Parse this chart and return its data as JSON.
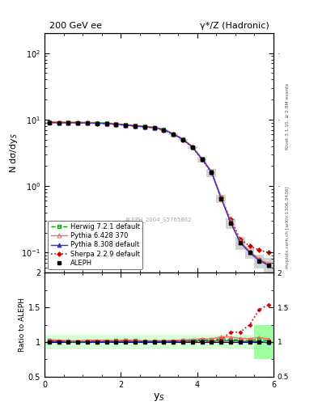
{
  "title_left": "200 GeV ee",
  "title_right": "γ*/Z (Hadronic)",
  "ylabel_main": "N dσ/dy$_S$",
  "ylabel_ratio": "Ratio to ALEPH",
  "xlabel": "y$_S$",
  "right_label_top": "Rivet 3.1.10, ≥ 2.8M events",
  "right_label_bottom": "mcplots.cern.ch [arXiv:1306.3436]",
  "watermark": "ALEPH_2004_S5765862",
  "xlim": [
    0,
    6
  ],
  "ylim_main": [
    0.05,
    200
  ],
  "ylim_ratio": [
    0.5,
    2.0
  ],
  "x_data": [
    0.125,
    0.375,
    0.625,
    0.875,
    1.125,
    1.375,
    1.625,
    1.875,
    2.125,
    2.375,
    2.625,
    2.875,
    3.125,
    3.375,
    3.625,
    3.875,
    4.125,
    4.375,
    4.625,
    4.875,
    5.125,
    5.375,
    5.625,
    5.875
  ],
  "aleph_y": [
    9.0,
    8.9,
    9.0,
    9.0,
    8.85,
    8.8,
    8.7,
    8.5,
    8.2,
    8.0,
    7.8,
    7.5,
    7.0,
    6.0,
    5.0,
    3.8,
    2.5,
    1.6,
    0.65,
    0.28,
    0.14,
    0.1,
    0.075,
    0.065
  ],
  "aleph_yerr": [
    0.3,
    0.25,
    0.25,
    0.25,
    0.22,
    0.22,
    0.22,
    0.22,
    0.2,
    0.2,
    0.2,
    0.2,
    0.18,
    0.15,
    0.15,
    0.2,
    0.25,
    0.22,
    0.09,
    0.05,
    0.03,
    0.02,
    0.018,
    0.018
  ],
  "herwig_y": [
    9.2,
    9.05,
    9.1,
    9.05,
    9.0,
    8.95,
    8.85,
    8.65,
    8.4,
    8.15,
    7.9,
    7.6,
    7.1,
    6.1,
    5.1,
    3.9,
    2.6,
    1.65,
    0.68,
    0.29,
    0.145,
    0.102,
    0.078,
    0.066
  ],
  "pythia6_y": [
    9.3,
    9.15,
    9.2,
    9.15,
    9.1,
    9.05,
    8.9,
    8.7,
    8.45,
    8.2,
    7.95,
    7.65,
    7.15,
    6.15,
    5.15,
    3.95,
    2.62,
    1.67,
    0.7,
    0.3,
    0.148,
    0.105,
    0.08,
    0.068
  ],
  "pythia8_y": [
    9.1,
    8.95,
    9.0,
    8.95,
    8.9,
    8.85,
    8.75,
    8.55,
    8.3,
    8.05,
    7.85,
    7.55,
    7.05,
    6.05,
    5.05,
    3.85,
    2.55,
    1.62,
    0.66,
    0.285,
    0.142,
    0.1,
    0.076,
    0.064
  ],
  "sherpa_y": [
    9.1,
    9.0,
    9.05,
    8.95,
    8.85,
    8.8,
    8.7,
    8.5,
    8.25,
    8.0,
    7.8,
    7.5,
    7.0,
    6.0,
    5.0,
    3.82,
    2.52,
    1.61,
    0.67,
    0.32,
    0.16,
    0.125,
    0.11,
    0.1
  ],
  "aleph_color": "#000000",
  "herwig_color": "#009900",
  "pythia6_color": "#ff6666",
  "pythia8_color": "#3333cc",
  "sherpa_color": "#cc0000"
}
